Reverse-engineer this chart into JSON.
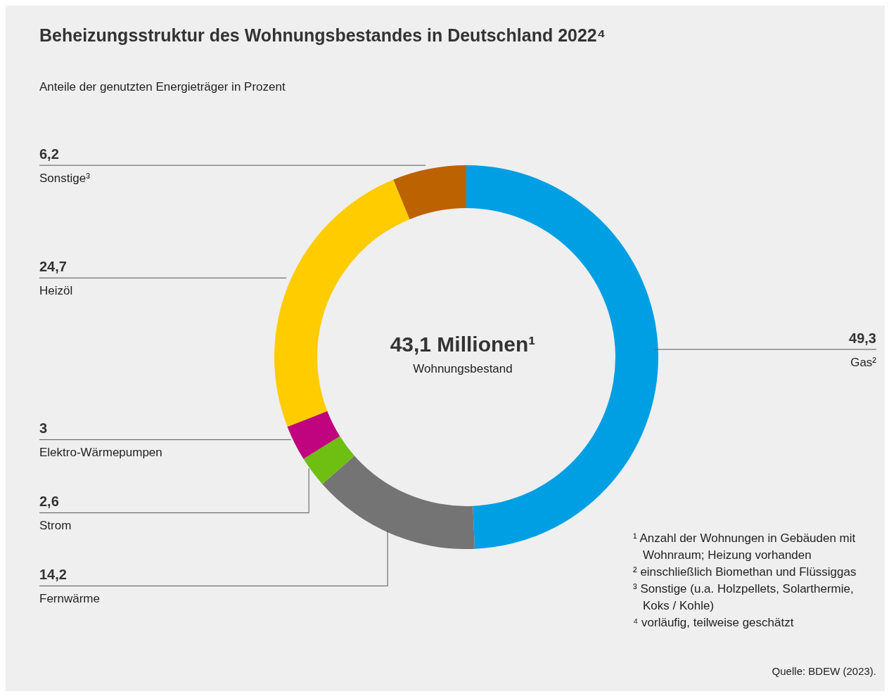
{
  "chart_data": {
    "type": "donut",
    "title": "Beheizungsstruktur des Wohnungsbestandes in Deutschland 2022⁴",
    "subtitle": "Anteile der genutzten Energieträger in Prozent",
    "categories": [
      "Gas²",
      "Fernwärme",
      "Strom",
      "Elektro-Wärmepumpen",
      "Heizöl",
      "Sonstige³"
    ],
    "values": [
      49.3,
      14.2,
      2.6,
      3,
      24.7,
      6.2
    ],
    "value_labels": [
      "49,3",
      "14,2",
      "2,6",
      "3",
      "24,7",
      "6,2"
    ],
    "colors": [
      "#009fe3",
      "#747474",
      "#6fbe12",
      "#c0047f",
      "#ffcc00",
      "#bd6200"
    ],
    "legend": false,
    "annotations": [
      "43,1 Millionen¹",
      "Wohnungsbestand",
      "¹ Anzahl der Wohnungen in Gebäuden mit Wohnraum; Heizung vorhanden",
      "² einschließlich Biomethan und Flüssiggas",
      "³ Sonstige (u.a. Holzpellets, Solarthermie, Koks / Kohle)",
      "⁴ vorläufig, teilweise geschätzt",
      "Quelle: BDEW (2023)."
    ]
  }
}
